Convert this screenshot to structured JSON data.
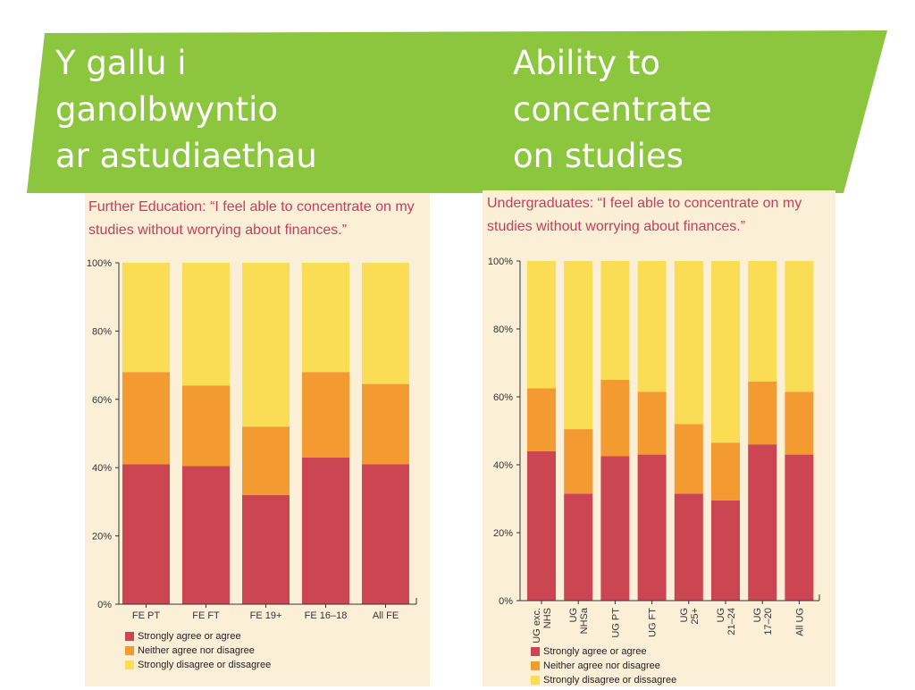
{
  "banner": {
    "title_welsh": "Y gallu i\nganolbwyntio\nar astudiaethau",
    "title_english": "Ability to\nconcentrate\non studies",
    "color": "#8cc63f"
  },
  "chart_data": [
    {
      "type": "bar",
      "stacked": true,
      "title": "Further Education: “I feel able to concentrate on my\nstudies without worrying about finances.”",
      "categories": [
        "FE PT",
        "FE FT",
        "FE 19+",
        "FE 16–18",
        "All FE"
      ],
      "yticks": [
        "0%",
        "20%",
        "40%",
        "60%",
        "80%",
        "100%"
      ],
      "ylim": [
        0,
        100
      ],
      "grid": false,
      "legend_position": "bottom-left",
      "series": [
        {
          "name": "Strongly agree or agree",
          "color": "#cc4552",
          "values": [
            41,
            40.5,
            32,
            43,
            41
          ]
        },
        {
          "name": "Neither agree nor disagree",
          "color": "#f39a30",
          "values": [
            27,
            23.5,
            20,
            25,
            23.5
          ]
        },
        {
          "name": "Strongly disagree or dissagree",
          "color": "#fbdc55",
          "values": [
            32,
            36,
            48,
            32,
            35.5
          ]
        }
      ]
    },
    {
      "type": "bar",
      "stacked": true,
      "title": "Undergraduates: “I feel able to concentrate on my\nstudies without worrying about finances.”",
      "categories": [
        "UG exc.\nNHS",
        "UG\nNHSa",
        "UG PT",
        "UG FT",
        "UG\n25+",
        "UG\n21–24",
        "UG\n17–20",
        "All UG"
      ],
      "yticks": [
        "0%",
        "20%",
        "40%",
        "60%",
        "80%",
        "100%"
      ],
      "ylim": [
        0,
        100
      ],
      "grid": false,
      "legend_position": "bottom-left",
      "series": [
        {
          "name": "Strongly agree or agree",
          "color": "#cc4552",
          "values": [
            44,
            31.5,
            42.5,
            43,
            31.5,
            29.5,
            46,
            43
          ]
        },
        {
          "name": "Neither agree nor disagree",
          "color": "#f39a30",
          "values": [
            18.5,
            19,
            22.5,
            18.5,
            20.5,
            17,
            18.5,
            18.5
          ]
        },
        {
          "name": "Strongly disagree or dissagree",
          "color": "#fbdc55",
          "values": [
            37.5,
            49.5,
            35,
            38.5,
            48,
            53.5,
            35.5,
            38.5
          ]
        }
      ]
    }
  ]
}
